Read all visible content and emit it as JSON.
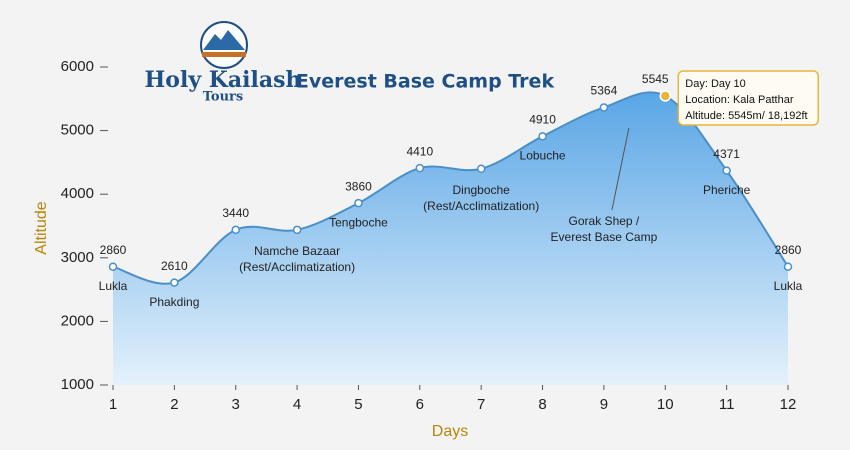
{
  "chart_data": {
    "type": "area",
    "brand": "Holy Kailash",
    "brand_sub": "Tours",
    "title": "Everest Base Camp Trek",
    "x_label": "Days",
    "y_label": "Altitude",
    "x": [
      1,
      2,
      3,
      4,
      5,
      6,
      7,
      8,
      9,
      10,
      11,
      12
    ],
    "values": [
      2860,
      2610,
      3440,
      3440,
      3860,
      4410,
      4400,
      4910,
      5364,
      5545,
      4371,
      2860
    ],
    "value_labels": [
      "2860",
      "2610",
      "3440",
      null,
      "3860",
      "4410",
      null,
      "4910",
      "5364",
      "5545",
      "4371",
      "2860"
    ],
    "point_names": [
      [
        "Lukla"
      ],
      [
        "Phakding"
      ],
      null,
      [
        "Namche Bazaar",
        "(Rest/Acclimatization)"
      ],
      [
        "Tengboche"
      ],
      null,
      [
        "Dingboche",
        "(Rest/Acclimatization)"
      ],
      [
        "Lobuche"
      ],
      [
        "Gorak Shep /",
        "Everest Base Camp"
      ],
      null,
      [
        "Pheriche"
      ],
      [
        "Lukla"
      ]
    ],
    "color": "#4a8fc8",
    "highlight_color": "#e8b53c",
    "xlim": [
      1,
      12
    ],
    "xticks": [
      1,
      2,
      3,
      4,
      5,
      6,
      7,
      8,
      9,
      10,
      11,
      12
    ],
    "ylim": [
      1000,
      6000
    ],
    "yticks": [
      1000,
      2000,
      3000,
      4000,
      5000,
      6000
    ],
    "tooltip": [
      "Day: Day 10",
      "Location: Kala Patthar",
      "Altitude: 5545m/ 18,192ft"
    ]
  }
}
